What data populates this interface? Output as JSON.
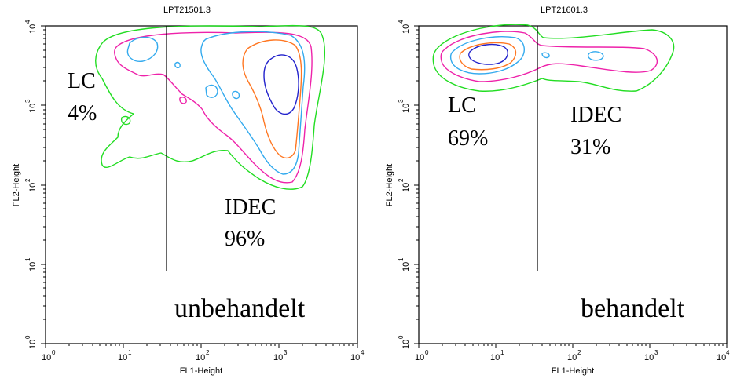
{
  "chart_data": [
    {
      "type": "contour",
      "title": "LPT21501.3",
      "xlabel": "FL1-Height",
      "ylabel": "FL2-Height",
      "xscale": "log",
      "yscale": "log",
      "xlim": [
        1,
        10000
      ],
      "ylim": [
        1,
        10000
      ],
      "x_ticks": [
        {
          "base": "10",
          "exp": "0"
        },
        {
          "base": "10",
          "exp": "1"
        },
        {
          "base": "10",
          "exp": "2"
        },
        {
          "base": "10",
          "exp": "3"
        },
        {
          "base": "10",
          "exp": "4"
        }
      ],
      "y_ticks": [
        {
          "base": "10",
          "exp": "0"
        },
        {
          "base": "10",
          "exp": "1"
        },
        {
          "base": "10",
          "exp": "2"
        },
        {
          "base": "10",
          "exp": "3"
        },
        {
          "base": "10",
          "exp": "4"
        }
      ],
      "gate_x": 35,
      "gates": [
        {
          "name": "LC",
          "percent": "4%"
        },
        {
          "name": "IDEC",
          "percent": "96%"
        }
      ],
      "condition_label": "unbehandelt",
      "contour_colors": [
        "#22dd22",
        "#ee22aa",
        "#33aaee",
        "#ff7722",
        "#2222cc"
      ]
    },
    {
      "type": "contour",
      "title": "LPT21601.3",
      "xlabel": "FL1-Height",
      "ylabel": "FL2-Height",
      "xscale": "log",
      "yscale": "log",
      "xlim": [
        1,
        10000
      ],
      "ylim": [
        1,
        10000
      ],
      "x_ticks": [
        {
          "base": "10",
          "exp": "0"
        },
        {
          "base": "10",
          "exp": "1"
        },
        {
          "base": "10",
          "exp": "2"
        },
        {
          "base": "10",
          "exp": "3"
        },
        {
          "base": "10",
          "exp": "4"
        }
      ],
      "y_ticks": [
        {
          "base": "10",
          "exp": "0"
        },
        {
          "base": "10",
          "exp": "1"
        },
        {
          "base": "10",
          "exp": "2"
        },
        {
          "base": "10",
          "exp": "3"
        },
        {
          "base": "10",
          "exp": "4"
        }
      ],
      "gate_x": 35,
      "gates": [
        {
          "name": "LC",
          "percent": "69%"
        },
        {
          "name": "IDEC",
          "percent": "31%"
        }
      ],
      "condition_label": "behandelt",
      "contour_colors": [
        "#22dd22",
        "#ee22aa",
        "#33aaee",
        "#ff7722",
        "#2222cc"
      ]
    }
  ]
}
